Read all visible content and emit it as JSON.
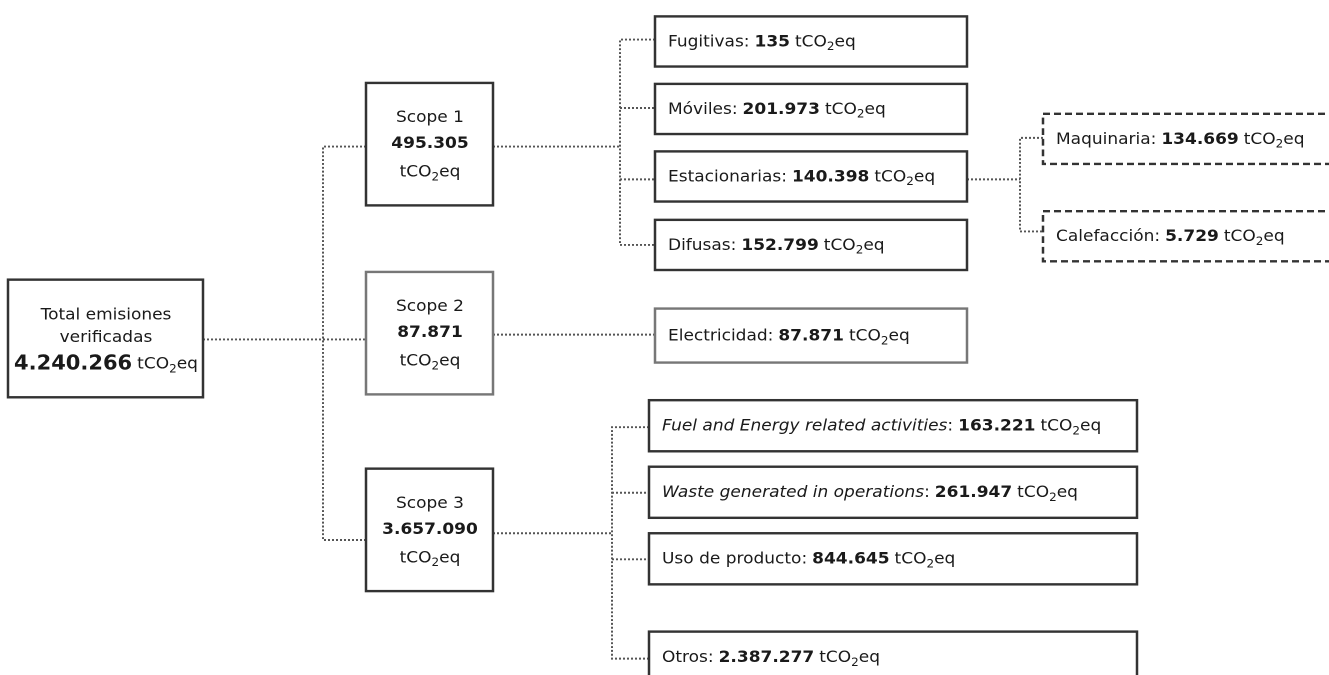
{
  "separator": ":",
  "unit": {
    "base": "tCO",
    "sub": "2",
    "tail": "eq"
  },
  "root": {
    "label_lines": [
      "Total emisiones",
      "verificadas"
    ],
    "value": "4.240.266"
  },
  "scopes": [
    {
      "name": "Scope 1",
      "value": "495.305",
      "items": [
        {
          "label": "Fugitivas",
          "value": "135"
        },
        {
          "label": "Móviles",
          "value": "201.973"
        },
        {
          "label": "Estacionarias",
          "value": "140.398",
          "items": [
            {
              "label": "Maquinaria",
              "value": "134.669"
            },
            {
              "label": "Calefacción",
              "value": "5.729"
            }
          ]
        },
        {
          "label": "Difusas",
          "value": "152.799"
        }
      ]
    },
    {
      "name": "Scope 2",
      "value": "87.871",
      "items": [
        {
          "label": "Electricidad",
          "value": "87.871"
        }
      ]
    },
    {
      "name": "Scope 3",
      "value": "3.657.090",
      "items": [
        {
          "label": "Fuel and Energy related activities",
          "value": "163.221",
          "italic": true
        },
        {
          "label": "Waste generated in operations",
          "value": "261.947",
          "italic": true
        },
        {
          "label": "Uso de producto",
          "value": "844.645"
        },
        {
          "label": "Otros",
          "value": "2.387.277"
        }
      ]
    }
  ]
}
